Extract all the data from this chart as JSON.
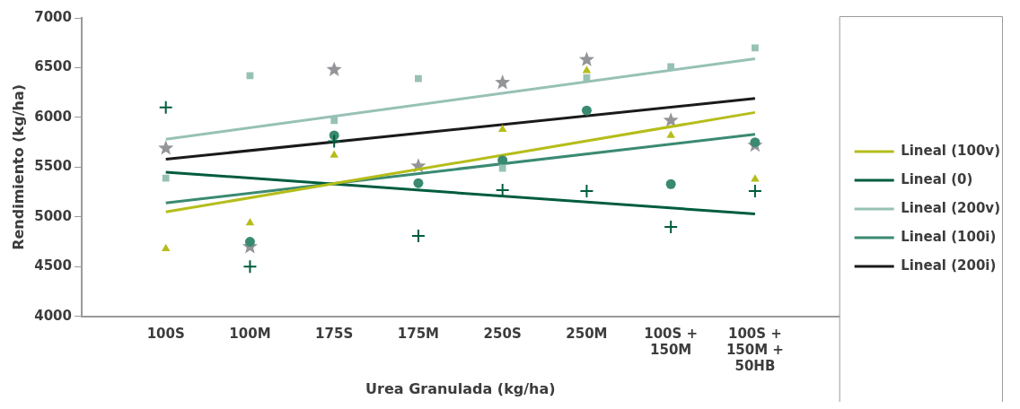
{
  "chart_data": {
    "type": "scatter",
    "xlabel": "Urea Granulada (kg/ha)",
    "ylabel": "Rendimiento (kg/ha)",
    "categories": [
      "100S",
      "100M",
      "175S",
      "175M",
      "250S",
      "250M",
      "100S + 150M",
      "100S + 150M + 50HB"
    ],
    "ylim": [
      4000,
      7000
    ],
    "yticks": [
      4000,
      4500,
      5000,
      5500,
      6000,
      6500,
      7000
    ],
    "grid": false,
    "legend": "right",
    "series": [
      {
        "marker": "triangle",
        "color": "#b5bd1a",
        "values": [
          4680,
          4940,
          5620,
          null,
          5880,
          6470,
          5820,
          5380
        ]
      },
      {
        "marker": "cross",
        "color": "#005c3e",
        "values": [
          6100,
          4500,
          5760,
          4810,
          5270,
          5260,
          4900,
          5260
        ]
      },
      {
        "marker": "square",
        "color": "#97c1b5",
        "values": [
          5390,
          6420,
          5970,
          6390,
          5490,
          6400,
          6510,
          6700
        ]
      },
      {
        "marker": "circle",
        "color": "#3a8a72",
        "values": [
          null,
          4750,
          5820,
          5340,
          5570,
          6070,
          5330,
          5750
        ]
      },
      {
        "marker": "star",
        "color": "#939598",
        "values": [
          5690,
          4700,
          6480,
          5510,
          6350,
          6580,
          5970,
          5720
        ]
      },
      {
        "type": "line",
        "name": "Lineal (100v)",
        "color": "#b5bd1a",
        "x": [
          "100S",
          "100S + 150M + 50HB"
        ],
        "values": [
          5050,
          6050
        ]
      },
      {
        "type": "line",
        "name": "Lineal (0)",
        "color": "#005c3e",
        "x": [
          "100S",
          "100S + 150M + 50HB"
        ],
        "values": [
          5450,
          5030
        ]
      },
      {
        "type": "line",
        "name": "Lineal (200v)",
        "color": "#97c1b5",
        "x": [
          "100S",
          "100S + 150M + 50HB"
        ],
        "values": [
          5780,
          6590
        ]
      },
      {
        "type": "line",
        "name": "Lineal (100i)",
        "color": "#3a8a72",
        "x": [
          "100S",
          "100S + 150M + 50HB"
        ],
        "values": [
          5140,
          5830
        ]
      },
      {
        "type": "line",
        "name": "Lineal (200i)",
        "color": "#1a1a1a",
        "x": [
          "100S",
          "100S + 150M + 50HB"
        ],
        "values": [
          5580,
          6190
        ]
      }
    ]
  }
}
